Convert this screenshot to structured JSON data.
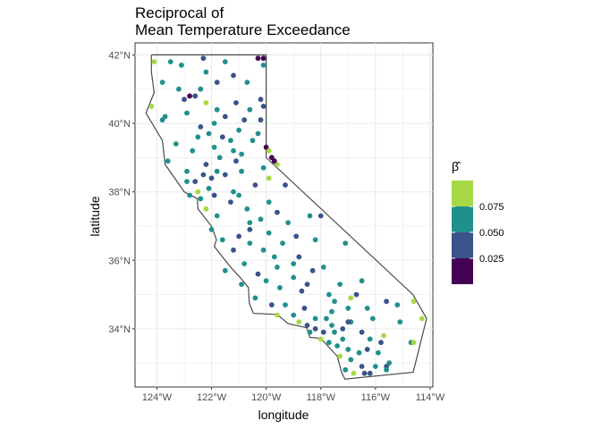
{
  "title_lines": [
    "Reciprocal of",
    "Mean Temperature Exceedance"
  ],
  "chart_data": {
    "type": "scatter",
    "subtype": "map",
    "title": "Reciprocal of Mean Temperature Exceedance",
    "xlabel": "longitude",
    "ylabel": "latitude",
    "xlim": [
      -124.8,
      -113.9
    ],
    "ylim": [
      32.3,
      42.35
    ],
    "x_ticks": [
      {
        "value": -124,
        "label": "124°W"
      },
      {
        "value": -122,
        "label": "122°W"
      },
      {
        "value": -120,
        "label": "120°W"
      },
      {
        "value": -118,
        "label": "118°W"
      },
      {
        "value": -116,
        "label": "116°W"
      },
      {
        "value": -114,
        "label": "114°W"
      }
    ],
    "y_ticks": [
      {
        "value": 34,
        "label": "34°N"
      },
      {
        "value": 36,
        "label": "36°N"
      },
      {
        "value": 38,
        "label": "38°N"
      },
      {
        "value": 40,
        "label": "40°N"
      },
      {
        "value": 42,
        "label": "42°N"
      }
    ],
    "grid": true,
    "legend": {
      "title": "β̂",
      "position": "right",
      "type": "binned",
      "bins": [
        {
          "color": "#440154",
          "range": "< 0.025"
        },
        {
          "color": "#3b528b",
          "range": "0.025 – 0.050"
        },
        {
          "color": "#21908c",
          "range": "0.050 – 0.075"
        },
        {
          "color": "#a8d845",
          "range": "> 0.075"
        }
      ],
      "labels": [
        "0.075",
        "0.050",
        "0.025"
      ]
    },
    "colors": {
      "lime": "#a8d845",
      "teal": "#21908c",
      "blue": "#3b528b",
      "purple": "#440154"
    },
    "boundary": [
      [
        -124.2,
        42.0
      ],
      [
        -120.0,
        42.0
      ],
      [
        -120.0,
        39.0
      ],
      [
        -114.63,
        35.0
      ],
      [
        -114.13,
        34.3
      ],
      [
        -114.62,
        32.73
      ],
      [
        -117.12,
        32.53
      ],
      [
        -117.25,
        32.75
      ],
      [
        -117.4,
        33.2
      ],
      [
        -118.0,
        33.72
      ],
      [
        -118.4,
        33.75
      ],
      [
        -118.52,
        34.03
      ],
      [
        -119.2,
        34.15
      ],
      [
        -119.6,
        34.42
      ],
      [
        -120.47,
        34.45
      ],
      [
        -120.62,
        34.75
      ],
      [
        -120.65,
        35.2
      ],
      [
        -120.9,
        35.45
      ],
      [
        -121.3,
        35.8
      ],
      [
        -121.9,
        36.4
      ],
      [
        -121.82,
        36.6
      ],
      [
        -122.0,
        37.0
      ],
      [
        -122.5,
        37.5
      ],
      [
        -122.52,
        37.8
      ],
      [
        -123.0,
        38.0
      ],
      [
        -123.7,
        38.8
      ],
      [
        -123.8,
        39.5
      ],
      [
        -124.4,
        40.3
      ],
      [
        -124.1,
        40.9
      ],
      [
        -124.2,
        41.5
      ],
      [
        -124.2,
        42.0
      ]
    ],
    "points": [
      {
        "lon": -124.1,
        "lat": 41.8,
        "beta": 0.08
      },
      {
        "lon": -123.5,
        "lat": 41.8,
        "beta": 0.06
      },
      {
        "lon": -123.1,
        "lat": 41.7,
        "beta": 0.06
      },
      {
        "lon": -122.3,
        "lat": 41.9,
        "beta": 0.04
      },
      {
        "lon": -122.2,
        "lat": 41.5,
        "beta": 0.06
      },
      {
        "lon": -121.5,
        "lat": 41.8,
        "beta": 0.06
      },
      {
        "lon": -120.3,
        "lat": 41.9,
        "beta": 0.02
      },
      {
        "lon": -120.1,
        "lat": 41.7,
        "beta": 0.06
      },
      {
        "lon": -121.2,
        "lat": 41.4,
        "beta": 0.04
      },
      {
        "lon": -123.8,
        "lat": 41.2,
        "beta": 0.06
      },
      {
        "lon": -123.2,
        "lat": 41.0,
        "beta": 0.06
      },
      {
        "lon": -122.6,
        "lat": 40.8,
        "beta": 0.04
      },
      {
        "lon": -122.2,
        "lat": 40.6,
        "beta": 0.08
      },
      {
        "lon": -121.8,
        "lat": 40.4,
        "beta": 0.06
      },
      {
        "lon": -121.1,
        "lat": 40.6,
        "beta": 0.04
      },
      {
        "lon": -120.6,
        "lat": 40.4,
        "beta": 0.06
      },
      {
        "lon": -120.2,
        "lat": 40.1,
        "beta": 0.04
      },
      {
        "lon": -123.8,
        "lat": 40.1,
        "beta": 0.06
      },
      {
        "lon": -124.2,
        "lat": 40.5,
        "beta": 0.08
      },
      {
        "lon": -122.9,
        "lat": 40.3,
        "beta": 0.06
      },
      {
        "lon": -122.4,
        "lat": 39.9,
        "beta": 0.04
      },
      {
        "lon": -123.3,
        "lat": 39.4,
        "beta": 0.06
      },
      {
        "lon": -122.7,
        "lat": 39.2,
        "beta": 0.06
      },
      {
        "lon": -122.1,
        "lat": 39.7,
        "beta": 0.06
      },
      {
        "lon": -121.6,
        "lat": 39.6,
        "beta": 0.04
      },
      {
        "lon": -121.0,
        "lat": 39.8,
        "beta": 0.06
      },
      {
        "lon": -120.5,
        "lat": 39.5,
        "beta": 0.06
      },
      {
        "lon": -120.0,
        "lat": 39.3,
        "beta": 0.02
      },
      {
        "lon": -119.8,
        "lat": 39.0,
        "beta": 0.02
      },
      {
        "lon": -119.6,
        "lat": 38.8,
        "beta": 0.08
      },
      {
        "lon": -119.9,
        "lat": 39.2,
        "beta": 0.08
      },
      {
        "lon": -121.2,
        "lat": 39.2,
        "beta": 0.06
      },
      {
        "lon": -121.7,
        "lat": 39.0,
        "beta": 0.06
      },
      {
        "lon": -122.2,
        "lat": 38.8,
        "beta": 0.04
      },
      {
        "lon": -122.9,
        "lat": 38.6,
        "beta": 0.06
      },
      {
        "lon": -123.6,
        "lat": 38.9,
        "beta": 0.06
      },
      {
        "lon": -122.6,
        "lat": 38.3,
        "beta": 0.04
      },
      {
        "lon": -122.1,
        "lat": 38.1,
        "beta": 0.06
      },
      {
        "lon": -121.5,
        "lat": 38.5,
        "beta": 0.04
      },
      {
        "lon": -120.9,
        "lat": 38.6,
        "beta": 0.06
      },
      {
        "lon": -120.4,
        "lat": 38.2,
        "beta": 0.04
      },
      {
        "lon": -119.9,
        "lat": 38.4,
        "beta": 0.08
      },
      {
        "lon": -119.3,
        "lat": 38.2,
        "beta": 0.04
      },
      {
        "lon": -122.4,
        "lat": 37.8,
        "beta": 0.06
      },
      {
        "lon": -122.2,
        "lat": 37.5,
        "beta": 0.08
      },
      {
        "lon": -121.8,
        "lat": 37.3,
        "beta": 0.06
      },
      {
        "lon": -121.3,
        "lat": 37.7,
        "beta": 0.04
      },
      {
        "lon": -120.7,
        "lat": 37.5,
        "beta": 0.06
      },
      {
        "lon": -120.2,
        "lat": 37.2,
        "beta": 0.06
      },
      {
        "lon": -119.6,
        "lat": 37.4,
        "beta": 0.04
      },
      {
        "lon": -119.2,
        "lat": 37.1,
        "beta": 0.06
      },
      {
        "lon": -118.4,
        "lat": 37.3,
        "beta": 0.06
      },
      {
        "lon": -118.0,
        "lat": 37.3,
        "beta": 0.04
      },
      {
        "lon": -122.0,
        "lat": 36.9,
        "beta": 0.06
      },
      {
        "lon": -121.6,
        "lat": 36.6,
        "beta": 0.06
      },
      {
        "lon": -121.2,
        "lat": 36.3,
        "beta": 0.04
      },
      {
        "lon": -120.6,
        "lat": 36.5,
        "beta": 0.06
      },
      {
        "lon": -119.9,
        "lat": 36.8,
        "beta": 0.06
      },
      {
        "lon": -119.4,
        "lat": 36.5,
        "beta": 0.06
      },
      {
        "lon": -118.9,
        "lat": 36.7,
        "beta": 0.04
      },
      {
        "lon": -118.2,
        "lat": 36.6,
        "beta": 0.06
      },
      {
        "lon": -117.1,
        "lat": 36.5,
        "beta": 0.06
      },
      {
        "lon": -120.8,
        "lat": 35.9,
        "beta": 0.06
      },
      {
        "lon": -120.3,
        "lat": 35.6,
        "beta": 0.04
      },
      {
        "lon": -119.6,
        "lat": 35.8,
        "beta": 0.06
      },
      {
        "lon": -119.0,
        "lat": 35.5,
        "beta": 0.06
      },
      {
        "lon": -118.5,
        "lat": 35.3,
        "beta": 0.04
      },
      {
        "lon": -117.9,
        "lat": 35.8,
        "beta": 0.06
      },
      {
        "lon": -117.3,
        "lat": 35.3,
        "beta": 0.06
      },
      {
        "lon": -116.5,
        "lat": 35.4,
        "beta": 0.06
      },
      {
        "lon": -120.9,
        "lat": 35.3,
        "beta": 0.06
      },
      {
        "lon": -120.4,
        "lat": 34.9,
        "beta": 0.06
      },
      {
        "lon": -119.8,
        "lat": 34.7,
        "beta": 0.04
      },
      {
        "lon": -119.3,
        "lat": 34.7,
        "beta": 0.06
      },
      {
        "lon": -119.0,
        "lat": 34.4,
        "beta": 0.06
      },
      {
        "lon": -118.6,
        "lat": 34.6,
        "beta": 0.04
      },
      {
        "lon": -118.2,
        "lat": 34.3,
        "beta": 0.06
      },
      {
        "lon": -117.6,
        "lat": 34.5,
        "beta": 0.06
      },
      {
        "lon": -117.0,
        "lat": 34.6,
        "beta": 0.06
      },
      {
        "lon": -116.3,
        "lat": 34.6,
        "beta": 0.06
      },
      {
        "lon": -115.6,
        "lat": 34.8,
        "beta": 0.04
      },
      {
        "lon": -114.6,
        "lat": 34.8,
        "beta": 0.08
      },
      {
        "lon": -114.3,
        "lat": 34.3,
        "beta": 0.08
      },
      {
        "lon": -115.2,
        "lat": 34.7,
        "beta": 0.06
      },
      {
        "lon": -115.1,
        "lat": 34.2,
        "beta": 0.06
      },
      {
        "lon": -116.9,
        "lat": 34.9,
        "beta": 0.08
      },
      {
        "lon": -119.6,
        "lat": 34.4,
        "beta": 0.08
      },
      {
        "lon": -118.5,
        "lat": 34.1,
        "beta": 0.04
      },
      {
        "lon": -118.2,
        "lat": 34.0,
        "beta": 0.04
      },
      {
        "lon": -117.9,
        "lat": 33.9,
        "beta": 0.04
      },
      {
        "lon": -117.6,
        "lat": 34.1,
        "beta": 0.06
      },
      {
        "lon": -117.2,
        "lat": 34.0,
        "beta": 0.04
      },
      {
        "lon": -116.9,
        "lat": 34.2,
        "beta": 0.06
      },
      {
        "lon": -116.5,
        "lat": 33.9,
        "beta": 0.04
      },
      {
        "lon": -116.2,
        "lat": 33.7,
        "beta": 0.06
      },
      {
        "lon": -115.7,
        "lat": 33.8,
        "beta": 0.08
      },
      {
        "lon": -114.7,
        "lat": 33.6,
        "beta": 0.06
      },
      {
        "lon": -114.6,
        "lat": 33.6,
        "beta": 0.08
      },
      {
        "lon": -118.0,
        "lat": 33.7,
        "beta": 0.08
      },
      {
        "lon": -117.7,
        "lat": 33.6,
        "beta": 0.06
      },
      {
        "lon": -117.4,
        "lat": 33.5,
        "beta": 0.06
      },
      {
        "lon": -117.0,
        "lat": 33.4,
        "beta": 0.06
      },
      {
        "lon": -116.6,
        "lat": 33.3,
        "beta": 0.06
      },
      {
        "lon": -116.3,
        "lat": 33.4,
        "beta": 0.04
      },
      {
        "lon": -117.3,
        "lat": 33.2,
        "beta": 0.08
      },
      {
        "lon": -116.9,
        "lat": 33.1,
        "beta": 0.06
      },
      {
        "lon": -116.5,
        "lat": 32.9,
        "beta": 0.04
      },
      {
        "lon": -117.1,
        "lat": 32.8,
        "beta": 0.06
      },
      {
        "lon": -116.8,
        "lat": 32.7,
        "beta": 0.08
      },
      {
        "lon": -116.4,
        "lat": 32.7,
        "beta": 0.04
      },
      {
        "lon": -115.6,
        "lat": 32.9,
        "beta": 0.04
      },
      {
        "lon": -115.6,
        "lat": 32.8,
        "beta": 0.06
      },
      {
        "lon": -116.2,
        "lat": 32.7,
        "beta": 0.04
      },
      {
        "lon": -120.2,
        "lat": 40.7,
        "beta": 0.04
      },
      {
        "lon": -120.1,
        "lat": 41.9,
        "beta": 0.02
      },
      {
        "lon": -122.8,
        "lat": 40.8,
        "beta": 0.02
      },
      {
        "lon": -120.1,
        "lat": 40.5,
        "beta": 0.04
      },
      {
        "lon": -123.7,
        "lat": 40.2,
        "beta": 0.06
      },
      {
        "lon": -121.5,
        "lat": 40.2,
        "beta": 0.04
      },
      {
        "lon": -121.3,
        "lat": 39.5,
        "beta": 0.06
      },
      {
        "lon": -120.9,
        "lat": 39.1,
        "beta": 0.06
      },
      {
        "lon": -121.1,
        "lat": 38.9,
        "beta": 0.04
      },
      {
        "lon": -122.0,
        "lat": 38.4,
        "beta": 0.04
      },
      {
        "lon": -122.5,
        "lat": 38.0,
        "beta": 0.08
      },
      {
        "lon": -122.8,
        "lat": 37.9,
        "beta": 0.06
      },
      {
        "lon": -121.9,
        "lat": 37.9,
        "beta": 0.04
      },
      {
        "lon": -121.0,
        "lat": 37.9,
        "beta": 0.06
      },
      {
        "lon": -119.9,
        "lat": 37.7,
        "beta": 0.06
      },
      {
        "lon": -120.6,
        "lat": 36.9,
        "beta": 0.04
      },
      {
        "lon": -120.1,
        "lat": 36.3,
        "beta": 0.06
      },
      {
        "lon": -119.0,
        "lat": 35.9,
        "beta": 0.06
      },
      {
        "lon": -118.7,
        "lat": 35.1,
        "beta": 0.04
      },
      {
        "lon": -117.7,
        "lat": 35.0,
        "beta": 0.06
      },
      {
        "lon": -117.5,
        "lat": 34.8,
        "beta": 0.06
      },
      {
        "lon": -116.7,
        "lat": 35.0,
        "beta": 0.04
      },
      {
        "lon": -121.5,
        "lat": 35.7,
        "beta": 0.06
      },
      {
        "lon": -119.5,
        "lat": 35.2,
        "beta": 0.06
      },
      {
        "lon": -118.8,
        "lat": 34.2,
        "beta": 0.08
      },
      {
        "lon": -117.2,
        "lat": 33.7,
        "beta": 0.06
      },
      {
        "lon": -115.9,
        "lat": 33.3,
        "beta": 0.06
      },
      {
        "lon": -115.5,
        "lat": 33.0,
        "beta": 0.06
      },
      {
        "lon": -115.8,
        "lat": 33.6,
        "beta": 0.04
      },
      {
        "lon": -117.8,
        "lat": 34.3,
        "beta": 0.06
      },
      {
        "lon": -116.1,
        "lat": 34.3,
        "beta": 0.06
      },
      {
        "lon": -120.7,
        "lat": 41.2,
        "beta": 0.06
      },
      {
        "lon": -121.8,
        "lat": 41.2,
        "beta": 0.04
      },
      {
        "lon": -122.4,
        "lat": 41.0,
        "beta": 0.06
      },
      {
        "lon": -123.0,
        "lat": 40.7,
        "beta": 0.04
      },
      {
        "lon": -121.9,
        "lat": 40.0,
        "beta": 0.06
      },
      {
        "lon": -120.8,
        "lat": 40.1,
        "beta": 0.04
      },
      {
        "lon": -122.5,
        "lat": 39.6,
        "beta": 0.06
      },
      {
        "lon": -121.9,
        "lat": 39.3,
        "beta": 0.06
      },
      {
        "lon": -120.3,
        "lat": 39.7,
        "beta": 0.06
      },
      {
        "lon": -119.7,
        "lat": 38.9,
        "beta": 0.02
      },
      {
        "lon": -120.1,
        "lat": 38.7,
        "beta": 0.06
      },
      {
        "lon": -122.3,
        "lat": 38.5,
        "beta": 0.04
      },
      {
        "lon": -121.8,
        "lat": 38.6,
        "beta": 0.06
      },
      {
        "lon": -122.9,
        "lat": 38.3,
        "beta": 0.06
      },
      {
        "lon": -121.2,
        "lat": 38.0,
        "beta": 0.06
      },
      {
        "lon": -120.6,
        "lat": 37.1,
        "beta": 0.06
      },
      {
        "lon": -121.0,
        "lat": 36.7,
        "beta": 0.04
      },
      {
        "lon": -119.7,
        "lat": 36.1,
        "beta": 0.06
      },
      {
        "lon": -118.8,
        "lat": 36.1,
        "beta": 0.04
      },
      {
        "lon": -120.0,
        "lat": 35.4,
        "beta": 0.06
      },
      {
        "lon": -118.3,
        "lat": 35.7,
        "beta": 0.04
      },
      {
        "lon": -117.0,
        "lat": 34.2,
        "beta": 0.04
      },
      {
        "lon": -118.4,
        "lat": 33.9,
        "beta": 0.06
      },
      {
        "lon": -116.0,
        "lat": 32.9,
        "beta": 0.06
      },
      {
        "lon": -117.5,
        "lat": 33.9,
        "beta": 0.06
      }
    ]
  }
}
